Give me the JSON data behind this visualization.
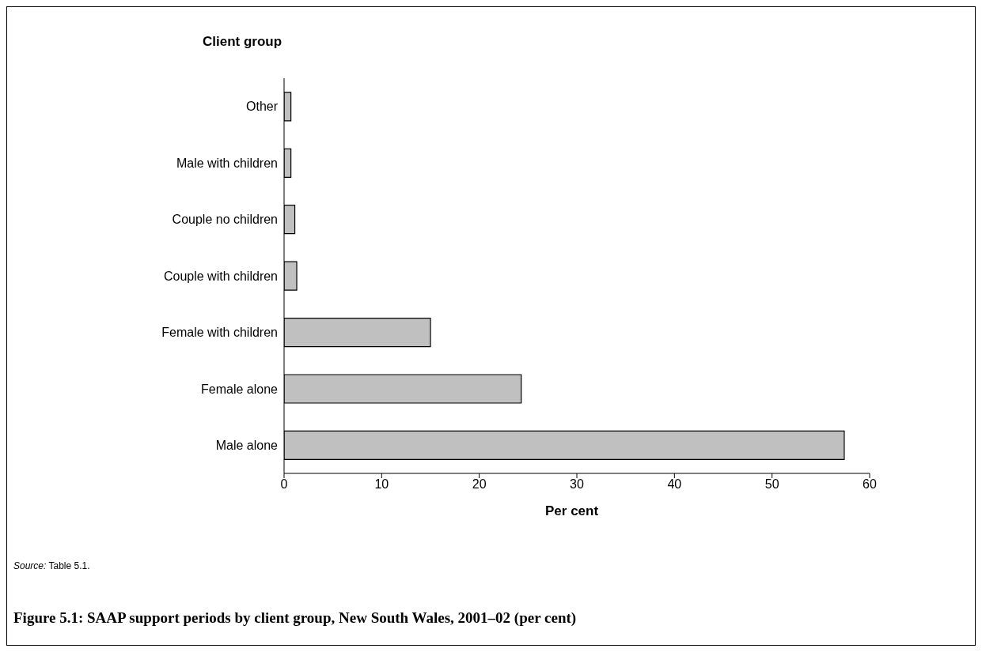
{
  "chart_data": {
    "type": "bar",
    "orientation": "horizontal",
    "title": "Figure 5.1: SAAP support periods by client group, New South Wales, 2001–02 (per cent)",
    "ylabel": "Client group",
    "xlabel": "Per cent",
    "categories": [
      "Other",
      "Male with children",
      "Couple no children",
      "Couple with children",
      "Female with children",
      "Female alone",
      "Male alone"
    ],
    "values": [
      0.7,
      0.7,
      1.1,
      1.3,
      15.0,
      24.3,
      57.4
    ],
    "color": "#c0c0c0",
    "xlim": [
      0,
      60
    ],
    "xticks": [
      0,
      10,
      20,
      30,
      40,
      50,
      60
    ],
    "grid": false,
    "legend": false,
    "annotations": [
      "Source: Table 5.1."
    ]
  }
}
